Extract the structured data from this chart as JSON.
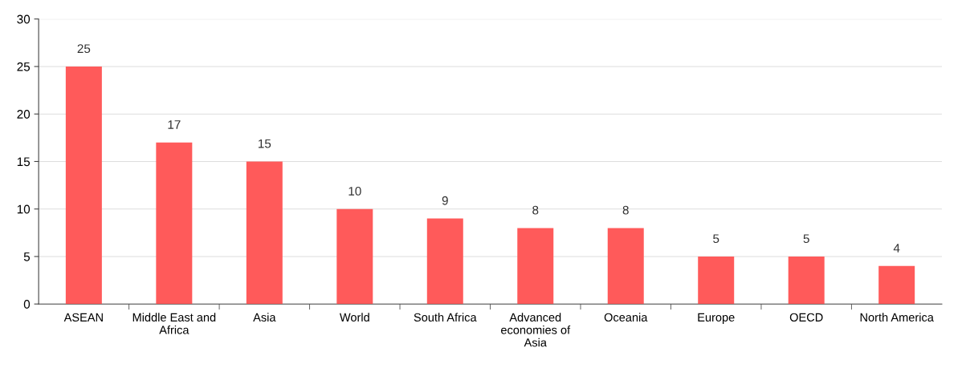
{
  "chart_data": {
    "type": "bar",
    "categories": [
      "ASEAN",
      "Middle East and Africa",
      "Asia",
      "World",
      "South Africa",
      "Advanced economies of Asia",
      "Oceania",
      "Europe",
      "OECD",
      "North America"
    ],
    "values": [
      25,
      17,
      15,
      10,
      9,
      8,
      8,
      5,
      5,
      4
    ],
    "color": "#ff5a5a",
    "ylim": [
      0,
      30
    ],
    "yticks": [
      0,
      5,
      10,
      15,
      20,
      25,
      30
    ],
    "grid": "y",
    "data_labels": true
  }
}
